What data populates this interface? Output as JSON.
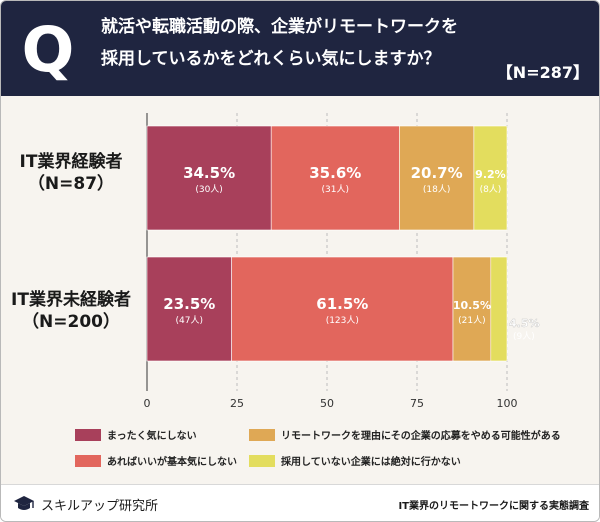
{
  "header": {
    "q_mark": "Q",
    "title_line1": "就活や転職活動の際、企業がリモートワークを",
    "title_line2": "採用しているかをどれくらい気にしますか？",
    "n_badge": "【N=287】"
  },
  "categories_labels": [
    {
      "line1": "IT業界経験者",
      "line2": "（N=87）"
    },
    {
      "line1": "IT業界未経験者",
      "line2": "（N=200）"
    }
  ],
  "chart_data": {
    "type": "bar",
    "orientation": "horizontal",
    "stacked": true,
    "categories": [
      "IT業界経験者（N=87）",
      "IT業界未経験者（N=200）"
    ],
    "series": [
      {
        "name": "まったく気にしない",
        "color": "#a8405b",
        "values": [
          34.5,
          23.5
        ],
        "counts": [
          "(30人)",
          "(47人)"
        ],
        "labels": [
          "34.5%",
          "23.5%"
        ]
      },
      {
        "name": "あればいいが基本気にしない",
        "color": "#e2665d",
        "values": [
          35.6,
          61.5
        ],
        "counts": [
          "(31人)",
          "(123人)"
        ],
        "labels": [
          "35.6%",
          "61.5%"
        ]
      },
      {
        "name": "リモートワークを理由にその企業の応募をやめる可能性がある",
        "color": "#dfa855",
        "values": [
          20.7,
          10.5
        ],
        "counts": [
          "(18人)",
          "(21人)"
        ],
        "labels": [
          "20.7%",
          "10.5%"
        ]
      },
      {
        "name": "採用していない企業には絶対に行かない",
        "color": "#e3dd5e",
        "values": [
          9.2,
          4.5
        ],
        "counts": [
          "(8人)",
          "(9人)"
        ],
        "labels": [
          "9.2%",
          "4.5%"
        ]
      }
    ],
    "xlim": [
      0,
      100
    ],
    "xticks": [
      "0",
      "25",
      "50",
      "75",
      "100"
    ],
    "grid": true
  },
  "legend": [
    {
      "label": "まったく気にしない",
      "color": "#a8405b"
    },
    {
      "label": "リモートワークを理由にその企業の応募をやめる可能性がある",
      "color": "#dfa855"
    },
    {
      "label": "あればいいが基本気にしない",
      "color": "#e2665d"
    },
    {
      "label": "採用していない企業には絶対に行かない",
      "color": "#e3dd5e"
    }
  ],
  "footer": {
    "brand": "スキルアップ研究所",
    "source": "IT業界のリモートワークに関する実態調査"
  }
}
